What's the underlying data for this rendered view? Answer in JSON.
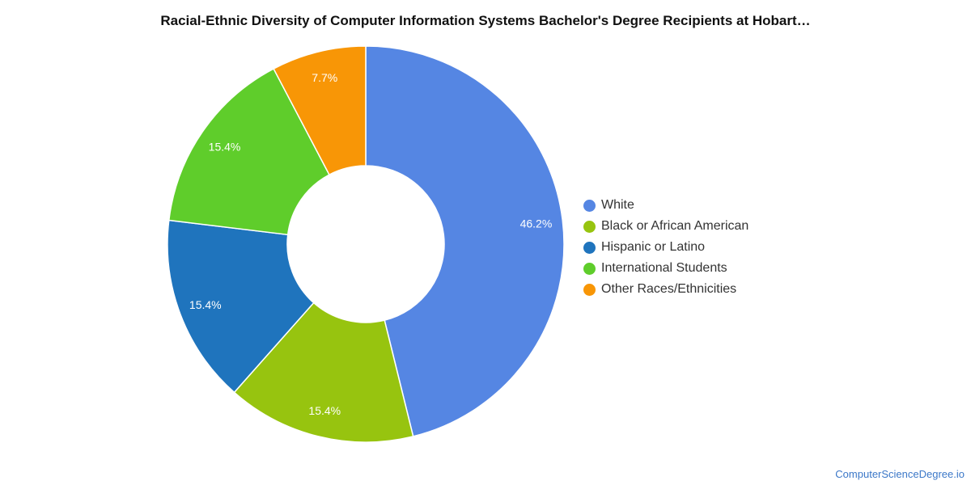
{
  "page": {
    "title": "Racial-Ethnic Diversity of Computer Information Systems Bachelor's Degree Recipients at Hobart…",
    "credit": "ComputerScienceDegree.io"
  },
  "chart_data": {
    "type": "pie",
    "donut": true,
    "title": "Racial-Ethnic Diversity of Computer Information Systems Bachelor's Degree Recipients at Hobart…",
    "categories": [
      "White",
      "Black or African American",
      "Hispanic or Latino",
      "International Students",
      "Other Races/Ethnicities"
    ],
    "values": [
      46.2,
      15.4,
      15.4,
      15.4,
      7.7
    ],
    "labels": [
      "46.2%",
      "15.4%",
      "15.4%",
      "15.4%",
      "7.7%"
    ],
    "colors": [
      "#5586e3",
      "#97c40f",
      "#1f74bd",
      "#5fcd2b",
      "#f89606"
    ],
    "legend_position": "right"
  }
}
